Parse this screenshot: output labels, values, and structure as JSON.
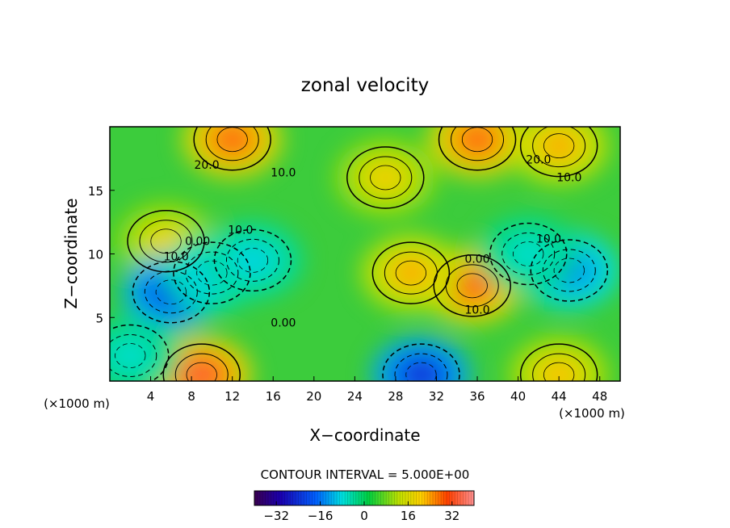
{
  "chart_data": {
    "type": "heatmap",
    "title": "zonal velocity",
    "xlabel": "X−coordinate",
    "ylabel": "Z−coordinate",
    "x_unit": "(×1000 m)",
    "z_unit": "(×1000 m)",
    "xlim": [
      0,
      50
    ],
    "ylim": [
      0,
      20
    ],
    "x_ticks": [
      4,
      8,
      12,
      16,
      20,
      24,
      28,
      32,
      36,
      40,
      44,
      48
    ],
    "y_ticks": [
      5,
      10,
      15
    ],
    "contour_interval_text": "CONTOUR INTERVAL = 5.000E+00",
    "contour_labels": [
      {
        "text": "20.0",
        "x": 9.5,
        "z": 16.7
      },
      {
        "text": "10.0",
        "x": 17.0,
        "z": 16.1
      },
      {
        "text": "20.0",
        "x": 42.0,
        "z": 17.1
      },
      {
        "text": "10.0",
        "x": 45.0,
        "z": 15.7
      },
      {
        "text": "10.0",
        "x": 12.8,
        "z": 11.6
      },
      {
        "text": "0.00",
        "x": 8.6,
        "z": 10.7
      },
      {
        "text": "10.0",
        "x": 6.5,
        "z": 9.5
      },
      {
        "text": "10.0",
        "x": 43.0,
        "z": 10.9
      },
      {
        "text": "0.00",
        "x": 36.0,
        "z": 9.3
      },
      {
        "text": "10.0",
        "x": 36.0,
        "z": 5.3
      },
      {
        "text": "0.00",
        "x": 17.0,
        "z": 4.3
      }
    ],
    "features": [
      {
        "kind": "max",
        "x": 12,
        "z": 19,
        "value": 30
      },
      {
        "kind": "max",
        "x": 36,
        "z": 19,
        "value": 30
      },
      {
        "kind": "max",
        "x": 44,
        "z": 18.5,
        "value": 22
      },
      {
        "kind": "max",
        "x": 27,
        "z": 16,
        "value": 18
      },
      {
        "kind": "max",
        "x": 9,
        "z": 0.5,
        "value": 34
      },
      {
        "kind": "max",
        "x": 35.5,
        "z": 7.5,
        "value": 30
      },
      {
        "kind": "max",
        "x": 29.5,
        "z": 8.5,
        "value": 22
      },
      {
        "kind": "max",
        "x": 5.5,
        "z": 11,
        "value": 17
      },
      {
        "kind": "max",
        "x": 44,
        "z": 0.5,
        "value": 20
      },
      {
        "kind": "min",
        "x": 6,
        "z": 7,
        "value": -26
      },
      {
        "kind": "min",
        "x": 10,
        "z": 8.5,
        "value": -12
      },
      {
        "kind": "min",
        "x": 14,
        "z": 9.5,
        "value": -10
      },
      {
        "kind": "min",
        "x": 45,
        "z": 8.7,
        "value": -18
      },
      {
        "kind": "min",
        "x": 41,
        "z": 10,
        "value": -8
      },
      {
        "kind": "min",
        "x": 30.5,
        "z": 0.5,
        "value": -28
      },
      {
        "kind": "min",
        "x": 2,
        "z": 2,
        "value": -8
      }
    ],
    "colorbar": {
      "range": [
        -40,
        40
      ],
      "tick_values": [
        -32,
        -16,
        0,
        16,
        32
      ],
      "tick_labels": [
        "−32",
        "−16",
        "0",
        "16",
        "32"
      ],
      "colormap": "rainbow"
    }
  }
}
